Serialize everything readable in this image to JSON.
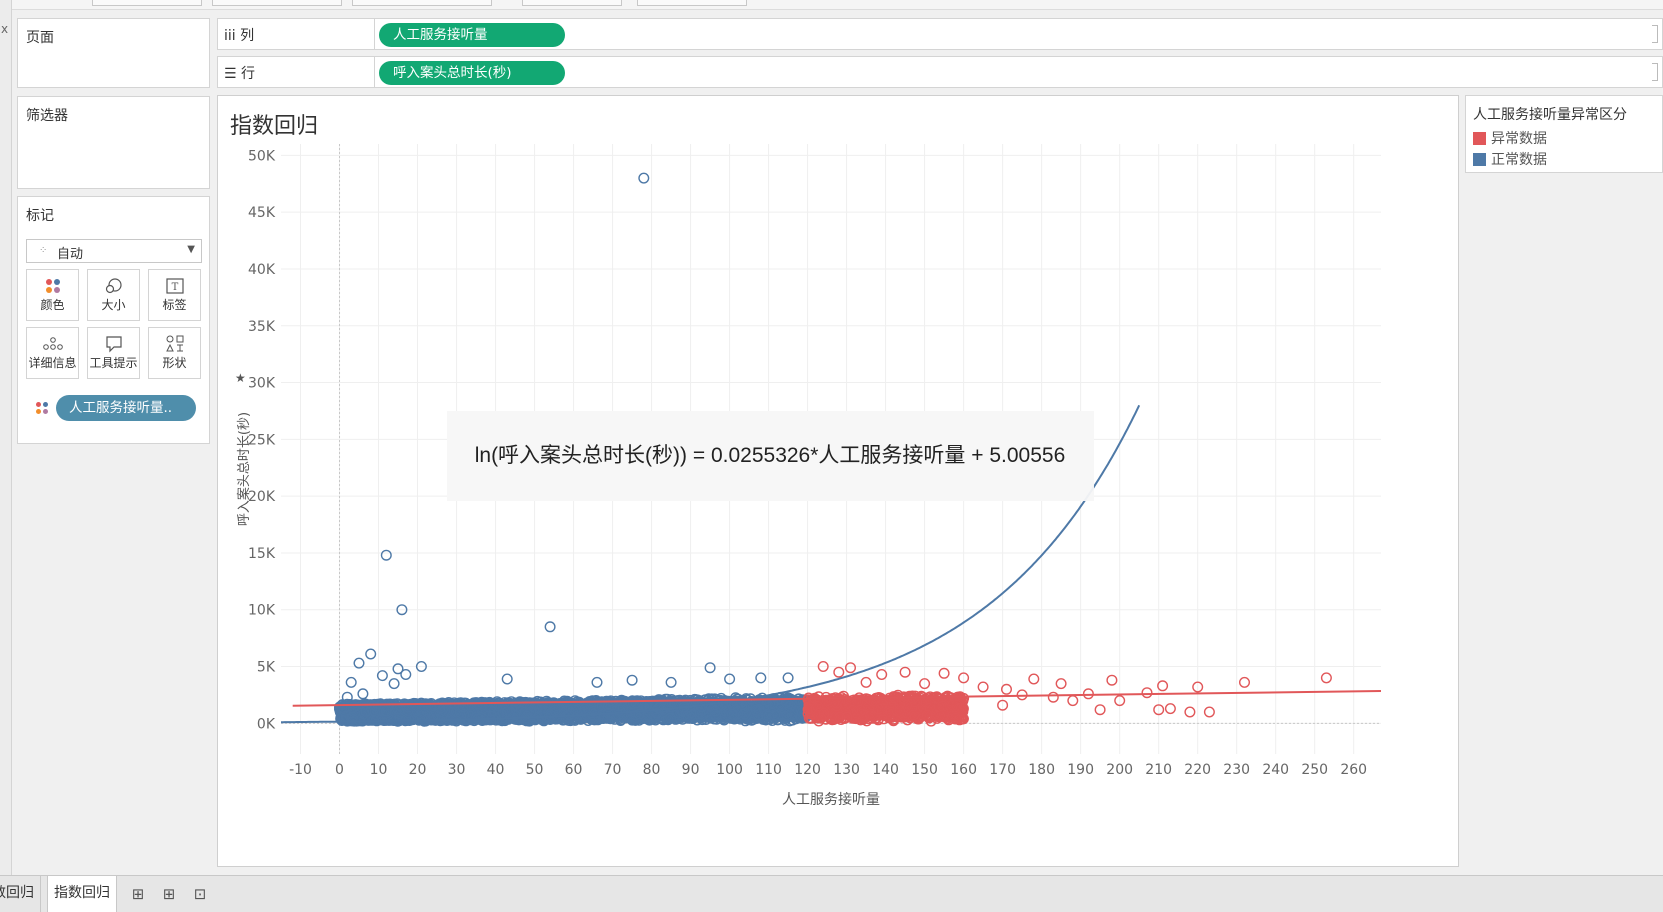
{
  "left_strip": {
    "close_glyph": "x"
  },
  "panes": {
    "pages_title": "页面",
    "filters_title": "筛选器",
    "marks_title": "标记",
    "mark_type": "自动",
    "mark_buttons": [
      {
        "label": "颜色",
        "icon": "color-icon"
      },
      {
        "label": "大小",
        "icon": "size-icon"
      },
      {
        "label": "标签",
        "icon": "label-icon"
      },
      {
        "label": "详细信息",
        "icon": "detail-icon"
      },
      {
        "label": "工具提示",
        "icon": "tooltip-icon"
      },
      {
        "label": "形状",
        "icon": "shape-icon"
      }
    ],
    "mark_pill": "人工服务接听量.."
  },
  "shelves": {
    "columns_label": "iii 列",
    "columns_pill": "人工服务接听量",
    "rows_label": "行",
    "rows_pill": "呼入案头总时长(秒)"
  },
  "legend": {
    "title": "人工服务接听量异常区分",
    "items": [
      {
        "label": "异常数据",
        "color": "#e15759"
      },
      {
        "label": "正常数据",
        "color": "#4e79a7"
      }
    ]
  },
  "tabs": {
    "sheet_left": "数回归",
    "sheet_active": "指数回归"
  },
  "colors": {
    "normal": "#4e79a7",
    "abnormal": "#e15759",
    "pill_green": "#12a873",
    "pill_blue": "#4f8eab"
  },
  "chart_data": {
    "type": "scatter",
    "title": "指数回归",
    "xlabel": "人工服务接听量",
    "ylabel": "呼入案头总时长(秒)",
    "xlim": [
      -15,
      267
    ],
    "ylim": [
      -2700,
      51000
    ],
    "x_ticks": [
      -10,
      0,
      10,
      20,
      30,
      40,
      50,
      60,
      70,
      80,
      90,
      100,
      110,
      120,
      130,
      140,
      150,
      160,
      170,
      180,
      190,
      200,
      210,
      220,
      230,
      240,
      250,
      260
    ],
    "y_ticks": [
      0,
      5000,
      10000,
      15000,
      20000,
      25000,
      30000,
      35000,
      40000,
      45000,
      50000
    ],
    "y_tick_labels": [
      "0K",
      "5K",
      "10K",
      "15K",
      "20K",
      "25K",
      "30K",
      "35K",
      "40K",
      "45K",
      "50K"
    ],
    "grid": true,
    "legend_position": "right",
    "annotation": "ln(呼入案头总时长(秒)) = 0.0255326*人工服务接听量 + 5.00556",
    "exp_trend": {
      "coef": 0.0255326,
      "intercept": 5.00556
    },
    "linear_trend": {
      "points": [
        [
          -12,
          1550
        ],
        [
          267,
          2850
        ]
      ]
    },
    "series": [
      {
        "name": "正常数据",
        "x_range": [
          0,
          120
        ],
        "outliers": [
          [
            78,
            48000
          ],
          [
            12,
            14800
          ],
          [
            16,
            10000
          ],
          [
            54,
            8500
          ],
          [
            8,
            6100
          ],
          [
            5,
            5300
          ],
          [
            15,
            4800
          ],
          [
            21,
            5000
          ],
          [
            17,
            4300
          ],
          [
            11,
            4200
          ],
          [
            95,
            4900
          ],
          [
            3,
            3600
          ],
          [
            14,
            3500
          ],
          [
            108,
            4000
          ],
          [
            115,
            4000
          ],
          [
            2,
            2300
          ],
          [
            6,
            2600
          ],
          [
            43,
            3900
          ],
          [
            66,
            3600
          ],
          [
            75,
            3800
          ],
          [
            85,
            3600
          ],
          [
            100,
            3900
          ]
        ]
      },
      {
        "name": "异常数据",
        "x_range": [
          120,
          160
        ],
        "outliers": [
          [
            253,
            4000
          ],
          [
            232,
            3600
          ],
          [
            220,
            3200
          ],
          [
            211,
            3300
          ],
          [
            198,
            3800
          ],
          [
            207,
            2700
          ],
          [
            192,
            2600
          ],
          [
            200,
            2000
          ],
          [
            195,
            1200
          ],
          [
            210,
            1200
          ],
          [
            218,
            1000
          ],
          [
            223,
            1000
          ],
          [
            213,
            1300
          ],
          [
            178,
            3900
          ],
          [
            171,
            3000
          ],
          [
            185,
            3500
          ],
          [
            183,
            2300
          ],
          [
            170,
            1600
          ],
          [
            188,
            2000
          ],
          [
            175,
            2500
          ],
          [
            165,
            3200
          ],
          [
            155,
            4400
          ],
          [
            160,
            4000
          ],
          [
            131,
            4900
          ],
          [
            124,
            5000
          ],
          [
            139,
            4300
          ],
          [
            145,
            4500
          ],
          [
            150,
            3500
          ],
          [
            128,
            4500
          ],
          [
            135,
            3600
          ]
        ]
      }
    ]
  }
}
